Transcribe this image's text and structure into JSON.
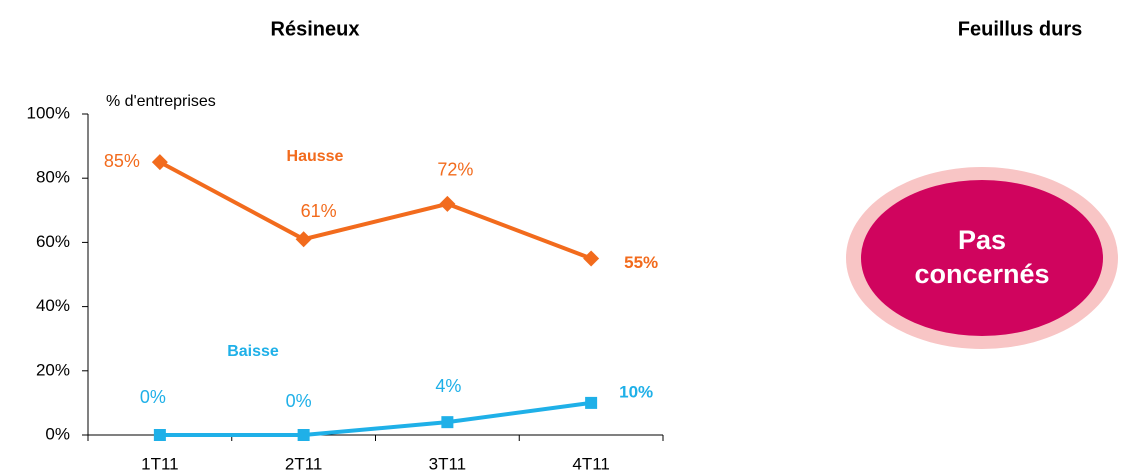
{
  "chart_data": {
    "type": "line",
    "title": "Résineux",
    "y_label": "% d'entreprises",
    "categories": [
      "1T11",
      "2T11",
      "3T11",
      "4T11"
    ],
    "series": [
      {
        "name": "Hausse",
        "color": "#f26b1d",
        "marker": "diamond",
        "values": [
          85,
          61,
          72,
          55
        ],
        "value_labels": [
          "85%",
          "61%",
          "72%",
          "55%"
        ]
      },
      {
        "name": "Baisse",
        "color": "#1fb0e8",
        "marker": "square",
        "values": [
          0,
          0,
          4,
          10
        ],
        "value_labels": [
          "0%",
          "0%",
          "4%",
          "10%"
        ]
      }
    ],
    "ylim": [
      0,
      100
    ],
    "yticks": [
      {
        "value": 0,
        "label": "0%"
      },
      {
        "value": 20,
        "label": "20%"
      },
      {
        "value": 40,
        "label": "40%"
      },
      {
        "value": 60,
        "label": "60%"
      },
      {
        "value": 80,
        "label": "80%"
      },
      {
        "value": 100,
        "label": "100%"
      }
    ]
  },
  "panel": {
    "title": "Feuillus durs",
    "badge_lines": [
      "Pas",
      "concernés"
    ]
  }
}
